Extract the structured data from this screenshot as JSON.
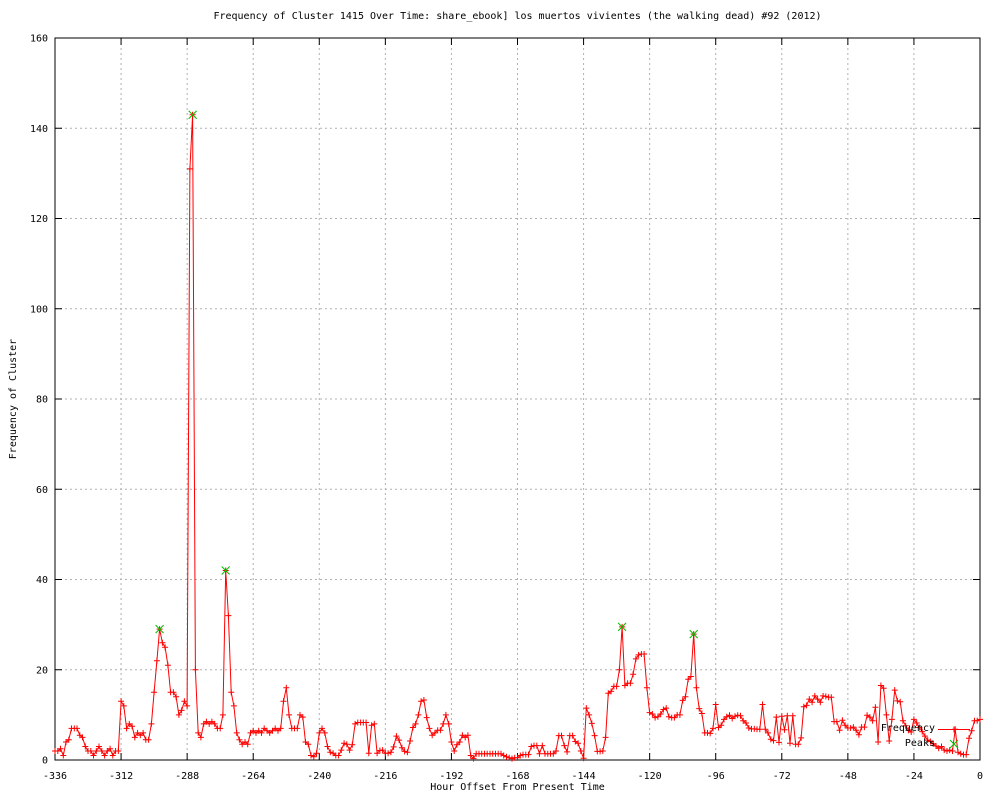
{
  "chart_data": {
    "type": "line",
    "title": "Frequency of Cluster 1415 Over Time: share_ebook] los muertos vivientes (the walking dead) #92 (2012)",
    "xlabel": "Hour Offset From Present Time",
    "ylabel": "Frequency of Cluster",
    "xlim": [
      -336,
      0
    ],
    "ylim": [
      0,
      160
    ],
    "x_ticks": [
      -336,
      -312,
      -288,
      -264,
      -240,
      -216,
      -192,
      -168,
      -144,
      -120,
      -96,
      -72,
      -48,
      -24,
      0
    ],
    "y_ticks": [
      0,
      20,
      40,
      60,
      80,
      100,
      120,
      140,
      160
    ],
    "grid": true,
    "grid_color": "#b0b0b0",
    "frame_color": "#000000",
    "legend_position": "bottom-right-inside",
    "series": [
      {
        "name": "Frequency",
        "style": "linespoints",
        "marker": "plus",
        "color": "#ff0000",
        "x_start": -336,
        "x_step": 1,
        "values": [
          2,
          2,
          2.5,
          1,
          4,
          4.5,
          7,
          7,
          7,
          5.5,
          5,
          3,
          2,
          2,
          1,
          2,
          3,
          2,
          1,
          2,
          2.5,
          1,
          2,
          2,
          13,
          12,
          7,
          8,
          7.5,
          5,
          6,
          5.5,
          6,
          4.5,
          4.5,
          8,
          15,
          22,
          29,
          26,
          25,
          21,
          15,
          15,
          14,
          10,
          11,
          13,
          12,
          131,
          143,
          20,
          6,
          5,
          8,
          8.5,
          8,
          8.5,
          8,
          7,
          7,
          10,
          42,
          32,
          15,
          12,
          6,
          4.5,
          3.5,
          4,
          3.5,
          6,
          6.5,
          6,
          6.5,
          6,
          7,
          6.5,
          6,
          6.5,
          7,
          6.5,
          7,
          13,
          16,
          10,
          7,
          7,
          7,
          10,
          9.5,
          4,
          3.5,
          1,
          0.7,
          1.5,
          6,
          7,
          6,
          3,
          1.7,
          1.5,
          1,
          1,
          2.2,
          3.7,
          3.5,
          2.2,
          3.4,
          8,
          8.3,
          8.3,
          8.3,
          8.3,
          1.5,
          7.7,
          8,
          1.5,
          2.1,
          2.2,
          1.5,
          1.5,
          1.7,
          2.9,
          5.3,
          4.4,
          2.7,
          1.9,
          1.7,
          4.2,
          7.2,
          8,
          10,
          13,
          13.3,
          9.4,
          7,
          5.5,
          6,
          6.6,
          6.6,
          8,
          10,
          8,
          4,
          2,
          3.4,
          4,
          5.5,
          5,
          5.5,
          1,
          0.3,
          1.4,
          1.4,
          1.4,
          1.4,
          1.4,
          1.4,
          1.4,
          1.4,
          1.4,
          1.4,
          1,
          0.7,
          0.5,
          0.3,
          0.5,
          0.5,
          1,
          1.2,
          1.2,
          1.2,
          3,
          3.2,
          3.2,
          1.4,
          3.2,
          1.4,
          1.4,
          1.4,
          1.4,
          2,
          5.4,
          5.4,
          3.2,
          1.8,
          5.4,
          5.4,
          4.1,
          3.7,
          2,
          0.4,
          11.5,
          10,
          8.1,
          5.4,
          1.9,
          1.9,
          2,
          5,
          14.8,
          15.2,
          16.3,
          16.3,
          20,
          29.5,
          16.5,
          17,
          17,
          19,
          22.4,
          23.3,
          23.5,
          23.5,
          16,
          10.5,
          10.2,
          9.4,
          9.6,
          10.2,
          11.2,
          11.5,
          9.6,
          9.4,
          9.4,
          10,
          10,
          13.2,
          14,
          17.9,
          18.5,
          27.9,
          16,
          11.4,
          10.3,
          6,
          6,
          5.9,
          7,
          12.3,
          7.2,
          7.7,
          9,
          9.6,
          9.9,
          9.2,
          9.7,
          9.9,
          9.8,
          8.7,
          8.2,
          7.1,
          6.9,
          6.9,
          6.8,
          6.8,
          12.3,
          6.8,
          6,
          4.6,
          4.3,
          9.5,
          3.9,
          9.7,
          6.7,
          9.8,
          3.7,
          9.8,
          3.5,
          3.5,
          4.9,
          11.8,
          12.1,
          13.5,
          12.8,
          14.2,
          13.5,
          12.8,
          14.2,
          14.1,
          13.9,
          13.9,
          8.5,
          8.5,
          6.6,
          8.8,
          7.7,
          7.1,
          7.1,
          7.3,
          6.6,
          5.6,
          7.3,
          7.3,
          9.9,
          9.5,
          8.7,
          11.7,
          4,
          16.5,
          15.9,
          10,
          4.2,
          9,
          15.5,
          13.1,
          12.9,
          8.7,
          7.6,
          6.6,
          6.2,
          9,
          8.2,
          7.2,
          6.3,
          5.3,
          4.4,
          4.1,
          3.6,
          3.1,
          2.6,
          3,
          2.2,
          2,
          2.2,
          2,
          6.8,
          1.7,
          1.4,
          1.2,
          1.2,
          4.8,
          6.5,
          8.7,
          8.7,
          9
        ]
      },
      {
        "name": "Peaks",
        "style": "points",
        "marker": "x",
        "color": "#00c000",
        "points": [
          [
            -298,
            29
          ],
          [
            -286,
            143
          ],
          [
            -274,
            42
          ],
          [
            -130,
            29.5
          ],
          [
            -104,
            27.9
          ]
        ]
      }
    ]
  },
  "legend": {
    "entries": [
      {
        "label": "Frequency"
      },
      {
        "label": "Peaks"
      }
    ]
  }
}
